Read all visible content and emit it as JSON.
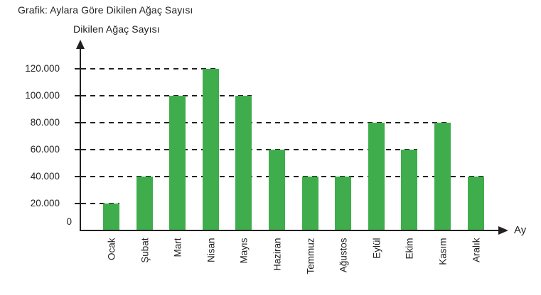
{
  "chart_data": {
    "type": "bar",
    "title": "Grafik: Aylara Göre Dikilen Ağaç Sayısı",
    "ylabel": "Dikilen Ağaç Sayısı",
    "xlabel": "Ay",
    "categories": [
      "Ocak",
      "Şubat",
      "Mart",
      "Nisan",
      "Mayıs",
      "Haziran",
      "Temmuz",
      "Ağustos",
      "Eylül",
      "Ekim",
      "Kasım",
      "Aralık"
    ],
    "values": [
      20000,
      40000,
      100000,
      120000,
      100000,
      60000,
      40000,
      40000,
      80000,
      60000,
      80000,
      40000
    ],
    "y_axis": {
      "min": 0,
      "max": 120000,
      "tick_interval": 20000,
      "tick_labels": [
        "0",
        "20.000",
        "40.000",
        "60.000",
        "80.000",
        "100.000",
        "120.000"
      ]
    },
    "legend": null,
    "grid": "horizontal dashed guide lines; each line ends at the last bar whose value equals that level",
    "bar_color": "#3FAD4C",
    "axis_color": "#231F20",
    "text_color": "#231F20"
  }
}
